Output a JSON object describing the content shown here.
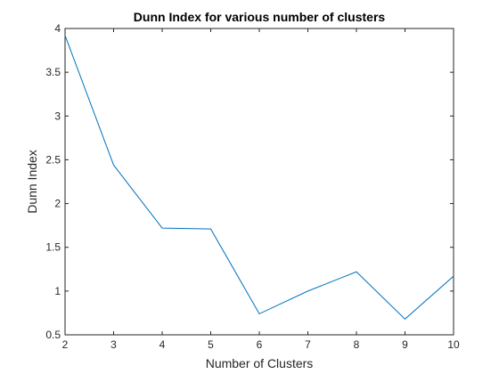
{
  "chart_data": {
    "type": "line",
    "title": "Dunn Index for various number of clusters",
    "xlabel": "Number of Clusters",
    "ylabel": "Dunn Index",
    "xlim": [
      2,
      10
    ],
    "ylim": [
      0.5,
      4
    ],
    "xticks": [
      2,
      3,
      4,
      5,
      6,
      7,
      8,
      9,
      10
    ],
    "yticks": [
      0.5,
      1,
      1.5,
      2,
      2.5,
      3,
      3.5,
      4
    ],
    "grid": false,
    "series": [
      {
        "x": [
          2,
          3,
          4,
          5,
          6,
          7,
          8,
          9,
          10
        ],
        "values": [
          3.92,
          2.44,
          1.72,
          1.71,
          0.74,
          1.0,
          1.22,
          0.68,
          1.17
        ],
        "color": "#0072BD"
      }
    ]
  }
}
